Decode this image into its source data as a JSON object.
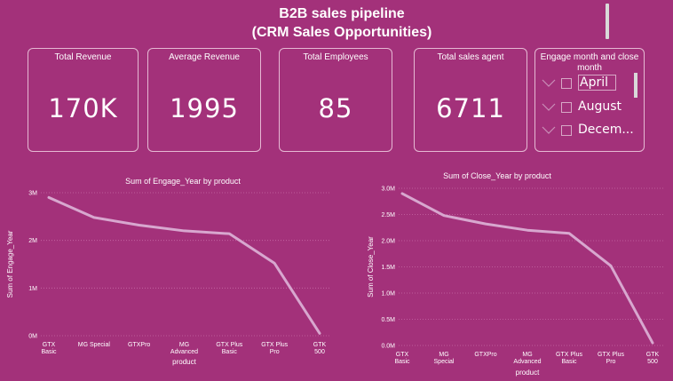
{
  "header": {
    "title_line1": "B2B sales pipeline",
    "title_line2": "(CRM Sales Opportunities)"
  },
  "cards": [
    {
      "label": "Total Revenue",
      "value": "170K"
    },
    {
      "label": "Average Revenue",
      "value": "1995"
    },
    {
      "label": "Total Employees",
      "value": "85"
    },
    {
      "label": "Total sales agent",
      "value": "6711"
    }
  ],
  "slicer": {
    "title": "Engage month and close month",
    "items": [
      "April",
      "August",
      "Decem..."
    ]
  },
  "colors": {
    "background": "#a3317a",
    "line": "#d8a7cf",
    "border": "#e6b9d4"
  },
  "chart_data": [
    {
      "type": "line",
      "title": "Sum of Engage_Year by product",
      "xlabel": "product",
      "ylabel": "Sum of Engage_Year",
      "categories": [
        "GTX Basic",
        "MG Special",
        "GTXPro",
        "MG Advanced",
        "GTX Plus Basic",
        "GTX Plus Pro",
        "GTK 500"
      ],
      "values": [
        2900000,
        2480000,
        2320000,
        2200000,
        2140000,
        1520000,
        50000
      ],
      "ylim": [
        0,
        3000000
      ],
      "yticks": [
        "0M",
        "1M",
        "2M",
        "3M"
      ],
      "grid": true
    },
    {
      "type": "line",
      "title": "Sum of Close_Year by product",
      "xlabel": "product",
      "ylabel": "Sum of Close_Year",
      "categories": [
        "GTX Basic",
        "MG Special",
        "GTXPro",
        "MG Advanced",
        "GTX Plus Basic",
        "GTX Plus Pro",
        "GTK 500"
      ],
      "values": [
        2900000,
        2480000,
        2320000,
        2200000,
        2140000,
        1520000,
        50000
      ],
      "ylim": [
        0,
        3000000
      ],
      "yticks": [
        "0.0M",
        "0.5M",
        "1.0M",
        "1.5M",
        "2.0M",
        "2.5M",
        "3.0M"
      ],
      "grid": true
    }
  ]
}
